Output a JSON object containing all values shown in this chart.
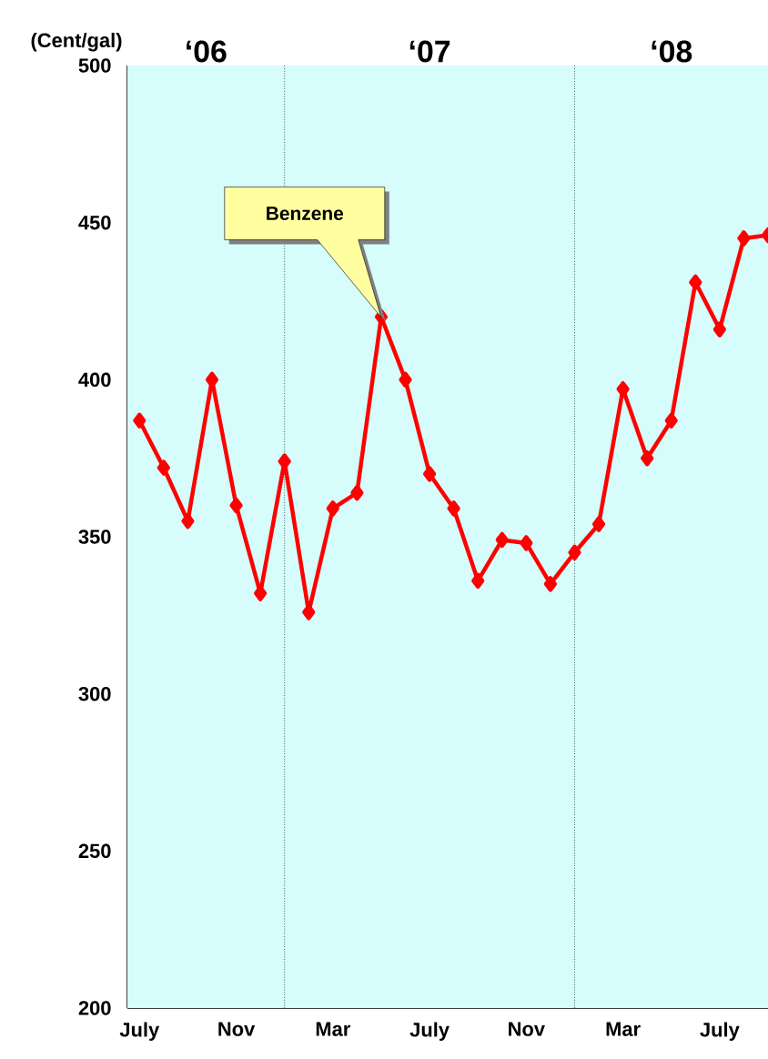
{
  "chart_data": {
    "type": "line",
    "ylabel": "(Cent/gal)",
    "categories": [
      "July",
      null,
      null,
      null,
      "Nov",
      null,
      null,
      null,
      "Mar",
      null,
      null,
      null,
      "July",
      null,
      null,
      null,
      "Nov",
      null,
      null,
      null,
      "Mar",
      null,
      null,
      null,
      "July",
      null,
      null
    ],
    "series": [
      {
        "color": "#ff0000",
        "values": [
          387,
          372,
          355,
          400,
          360,
          332,
          374,
          326,
          359,
          364,
          420,
          400,
          370,
          359,
          336,
          349,
          348,
          335,
          345,
          354,
          397,
          375,
          387,
          431,
          416,
          445,
          446
        ]
      }
    ],
    "ylim": [
      200,
      500
    ],
    "yticks": [
      200,
      250,
      300,
      350,
      400,
      450,
      500
    ],
    "marker": "diamond",
    "line_style": "solid",
    "annotations": [
      "‘06",
      "‘07",
      "‘08",
      "Benzene"
    ]
  }
}
